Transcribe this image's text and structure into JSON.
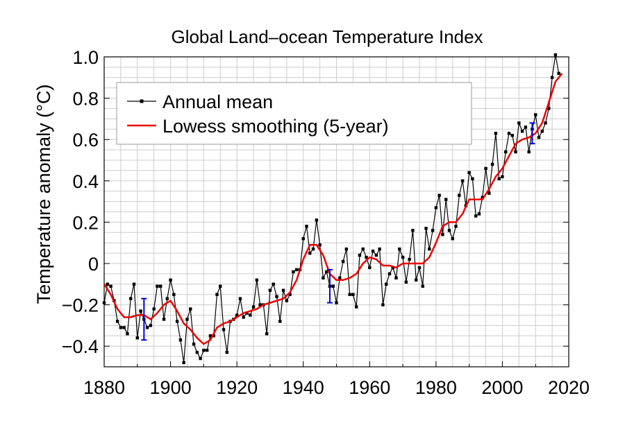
{
  "chart_data": {
    "type": "line",
    "title": "Global Land–ocean Temperature Index",
    "xlabel": "",
    "ylabel": "Temperature anomaly (°C)",
    "xlim": [
      1880,
      2020
    ],
    "ylim": [
      -0.5,
      1.0
    ],
    "grid": true,
    "legend_position": "top-left",
    "x_tick_labels": [
      "1880",
      "1900",
      "1920",
      "1940",
      "1960",
      "1980",
      "2000",
      "2020"
    ],
    "y_tick_labels": [
      "−0.4",
      "−0.2",
      "0",
      "0.2",
      "0.4",
      "0.6",
      "0.8",
      "1.0"
    ],
    "series": [
      {
        "name": "Annual mean",
        "color": "#000000",
        "style": "line-with-square-markers",
        "x": [
          1880,
          1881,
          1882,
          1883,
          1884,
          1885,
          1886,
          1887,
          1888,
          1889,
          1890,
          1891,
          1892,
          1893,
          1894,
          1895,
          1896,
          1897,
          1898,
          1899,
          1900,
          1901,
          1902,
          1903,
          1904,
          1905,
          1906,
          1907,
          1908,
          1909,
          1910,
          1911,
          1912,
          1913,
          1914,
          1915,
          1916,
          1917,
          1918,
          1919,
          1920,
          1921,
          1922,
          1923,
          1924,
          1925,
          1926,
          1927,
          1928,
          1929,
          1930,
          1931,
          1932,
          1933,
          1934,
          1935,
          1936,
          1937,
          1938,
          1939,
          1940,
          1941,
          1942,
          1943,
          1944,
          1945,
          1946,
          1947,
          1948,
          1949,
          1950,
          1951,
          1952,
          1953,
          1954,
          1955,
          1956,
          1957,
          1958,
          1959,
          1960,
          1961,
          1962,
          1963,
          1964,
          1965,
          1966,
          1967,
          1968,
          1969,
          1970,
          1971,
          1972,
          1973,
          1974,
          1975,
          1976,
          1977,
          1978,
          1979,
          1980,
          1981,
          1982,
          1983,
          1984,
          1985,
          1986,
          1987,
          1988,
          1989,
          1990,
          1991,
          1992,
          1993,
          1994,
          1995,
          1996,
          1997,
          1998,
          1999,
          2000,
          2001,
          2002,
          2003,
          2004,
          2005,
          2006,
          2007,
          2008,
          2009,
          2010,
          2011,
          2012,
          2013,
          2014,
          2015,
          2016,
          2017
        ],
        "values": [
          -0.19,
          -0.1,
          -0.11,
          -0.18,
          -0.28,
          -0.31,
          -0.31,
          -0.34,
          -0.17,
          -0.1,
          -0.36,
          -0.23,
          -0.27,
          -0.31,
          -0.3,
          -0.22,
          -0.11,
          -0.11,
          -0.27,
          -0.17,
          -0.08,
          -0.15,
          -0.28,
          -0.37,
          -0.48,
          -0.27,
          -0.22,
          -0.39,
          -0.43,
          -0.46,
          -0.42,
          -0.42,
          -0.35,
          -0.35,
          -0.15,
          -0.11,
          -0.32,
          -0.43,
          -0.28,
          -0.27,
          -0.25,
          -0.17,
          -0.26,
          -0.24,
          -0.25,
          -0.21,
          -0.08,
          -0.2,
          -0.2,
          -0.34,
          -0.13,
          -0.1,
          -0.16,
          -0.28,
          -0.13,
          -0.18,
          -0.15,
          -0.04,
          -0.03,
          -0.03,
          0.12,
          0.18,
          0.05,
          0.07,
          0.21,
          0.09,
          -0.07,
          -0.04,
          -0.11,
          -0.11,
          -0.19,
          -0.07,
          0.01,
          0.07,
          -0.15,
          -0.15,
          -0.21,
          0.04,
          0.07,
          0.03,
          -0.02,
          0.06,
          0.04,
          0.07,
          -0.2,
          -0.1,
          -0.05,
          -0.02,
          -0.07,
          0.07,
          0.03,
          -0.09,
          0.02,
          0.16,
          -0.08,
          -0.02,
          -0.11,
          0.17,
          0.07,
          0.16,
          0.27,
          0.33,
          0.14,
          0.31,
          0.16,
          0.12,
          0.18,
          0.33,
          0.4,
          0.28,
          0.44,
          0.41,
          0.23,
          0.24,
          0.32,
          0.46,
          0.34,
          0.48,
          0.63,
          0.41,
          0.42,
          0.54,
          0.63,
          0.62,
          0.54,
          0.68,
          0.64,
          0.66,
          0.54,
          0.65,
          0.72,
          0.61,
          0.64,
          0.68,
          0.75,
          0.9,
          1.01,
          0.92
        ]
      },
      {
        "name": "Lowess smoothing (5-year)",
        "color": "#ee0000",
        "style": "line",
        "x": [
          1880,
          1882,
          1884,
          1886,
          1888,
          1890,
          1892,
          1894,
          1896,
          1898,
          1900,
          1902,
          1904,
          1906,
          1908,
          1910,
          1912,
          1914,
          1916,
          1918,
          1920,
          1922,
          1924,
          1926,
          1928,
          1930,
          1932,
          1934,
          1936,
          1938,
          1940,
          1942,
          1944,
          1946,
          1948,
          1950,
          1952,
          1954,
          1956,
          1958,
          1960,
          1962,
          1964,
          1966,
          1968,
          1970,
          1972,
          1974,
          1976,
          1978,
          1980,
          1982,
          1984,
          1986,
          1988,
          1990,
          1992,
          1994,
          1996,
          1998,
          2000,
          2002,
          2004,
          2006,
          2008,
          2010,
          2012,
          2014,
          2016,
          2018
        ],
        "values": [
          -0.1,
          -0.15,
          -0.22,
          -0.26,
          -0.26,
          -0.25,
          -0.25,
          -0.27,
          -0.24,
          -0.2,
          -0.18,
          -0.23,
          -0.29,
          -0.32,
          -0.36,
          -0.39,
          -0.37,
          -0.31,
          -0.29,
          -0.28,
          -0.26,
          -0.24,
          -0.23,
          -0.22,
          -0.2,
          -0.19,
          -0.18,
          -0.17,
          -0.14,
          -0.08,
          0.02,
          0.09,
          0.09,
          0.04,
          -0.05,
          -0.08,
          -0.08,
          -0.07,
          -0.05,
          0.0,
          0.03,
          0.02,
          -0.01,
          -0.01,
          -0.02,
          0.0,
          0.0,
          0.0,
          0.0,
          0.03,
          0.1,
          0.18,
          0.2,
          0.2,
          0.24,
          0.31,
          0.31,
          0.31,
          0.36,
          0.42,
          0.46,
          0.52,
          0.58,
          0.6,
          0.61,
          0.63,
          0.68,
          0.78,
          0.88,
          0.92
        ]
      }
    ],
    "error_bars": [
      {
        "x": 1892,
        "low": -0.37,
        "high": -0.17,
        "color": "#0000dd"
      },
      {
        "x": 1948,
        "low": -0.19,
        "high": -0.03,
        "color": "#0000dd"
      },
      {
        "x": 2009,
        "low": 0.58,
        "high": 0.68,
        "color": "#0000dd"
      }
    ]
  }
}
